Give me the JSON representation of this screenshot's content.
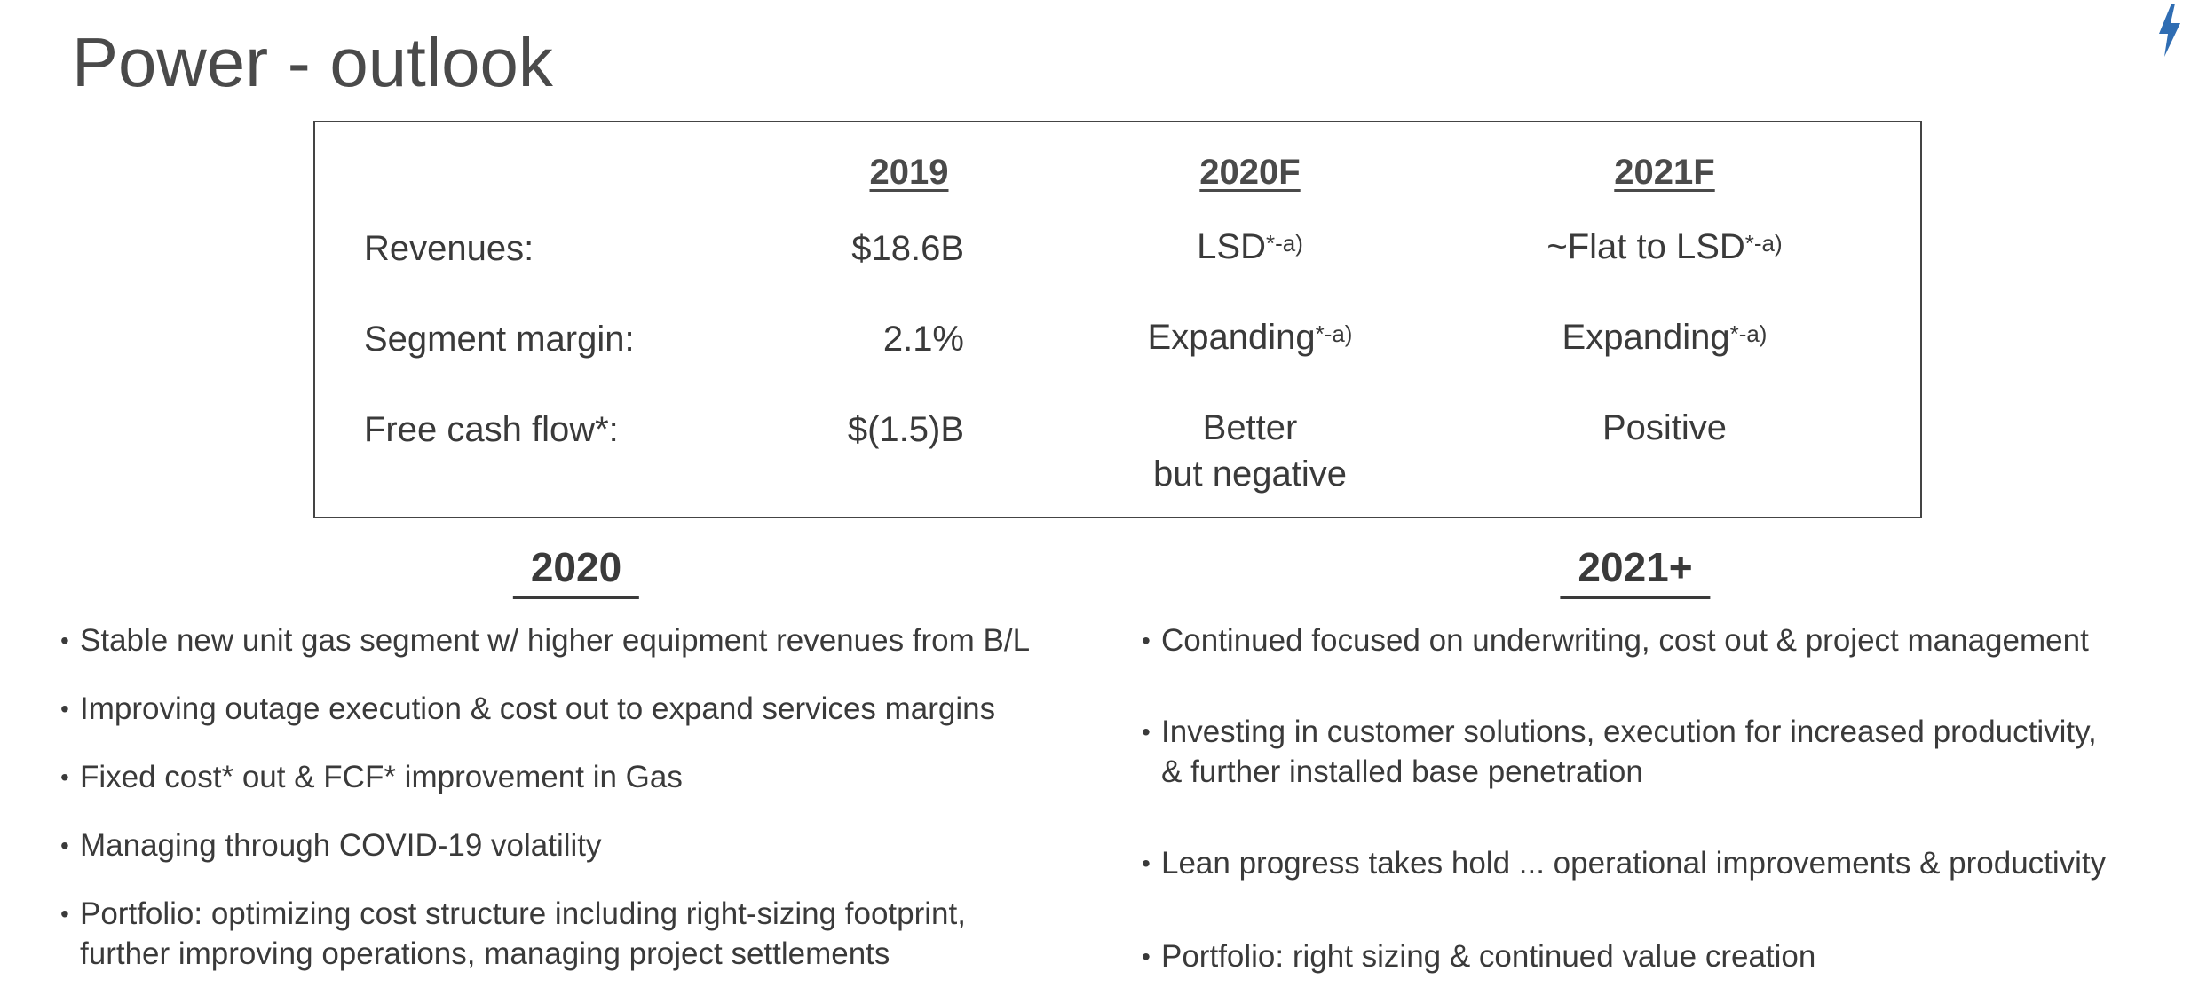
{
  "title": "Power - outlook",
  "colors": {
    "accent": "#2f6db3",
    "text": "#3a3a3a",
    "border": "#444444"
  },
  "table": {
    "headers": [
      "2019",
      "2020F",
      "2021F"
    ],
    "rows": [
      {
        "label": "Revenues:",
        "y2019": "$18.6B",
        "y2020": "LSD",
        "y2020_sup": "*-a)",
        "y2021": "~Flat to LSD",
        "y2021_sup": "*-a)"
      },
      {
        "label": "Segment margin:",
        "y2019": "2.1%",
        "y2020": "Expanding",
        "y2020_sup": "*-a)",
        "y2021": "Expanding",
        "y2021_sup": "*-a)"
      },
      {
        "label": "Free cash flow*:",
        "y2019": "$(1.5)B",
        "y2020_line1": "Better",
        "y2020_line2": "but negative",
        "y2021": "Positive"
      }
    ]
  },
  "left": {
    "heading": "2020",
    "bullets": [
      [
        "Stable new unit gas segment w/ higher equipment revenues from B/L"
      ],
      [
        "Improving outage execution & cost out to expand services margins"
      ],
      [
        "Fixed cost* out & FCF* improvement in Gas"
      ],
      [
        "Managing through COVID-19 volatility"
      ],
      [
        "Portfolio: optimizing cost structure including right-sizing footprint,",
        "further improving operations, managing project settlements"
      ]
    ]
  },
  "right": {
    "heading": "2021+",
    "bullets": [
      [
        "Continued focused on underwriting, cost out & project management"
      ],
      [
        "Investing in customer solutions, execution for increased productivity,",
        "& further installed base penetration"
      ],
      [
        "Lean progress takes hold ... operational improvements & productivity"
      ],
      [
        "Portfolio: right sizing & continued value creation"
      ]
    ]
  }
}
